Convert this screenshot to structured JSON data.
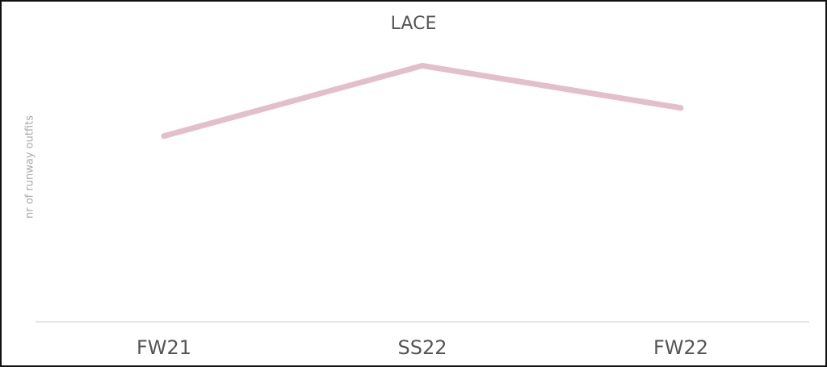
{
  "chart_data": {
    "type": "line",
    "title": "LACE",
    "y_label": "nr of runway outfits",
    "categories": [
      "FW21",
      "SS22",
      "FW22"
    ],
    "series": [
      {
        "name": "LACE",
        "color": "#e3bfcc",
        "values": [
          66,
          91,
          76
        ]
      }
    ],
    "ylim": [
      0,
      100
    ]
  }
}
